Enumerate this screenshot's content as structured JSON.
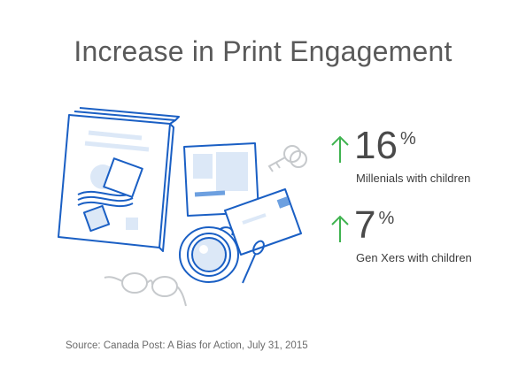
{
  "title": "Increase in Print Engagement",
  "stats": [
    {
      "value": "16",
      "unit": "%",
      "label": "Millenials with children"
    },
    {
      "value": "7",
      "unit": "%",
      "label": "Gen Xers with children"
    }
  ],
  "source": "Source: Canada Post: A Bias for Action, July 31, 2015",
  "colors": {
    "accent_blue": "#1a5fc4",
    "light_blue": "#dce8f7",
    "gray_line": "#c6c9cc",
    "arrow_green": "#3fb34f",
    "title_gray": "#5a5a5a"
  },
  "icons": [
    "magazine-icon",
    "card-icon",
    "envelope-icon",
    "keys-icon",
    "coffee-cup-icon",
    "spoon-icon",
    "glasses-icon",
    "up-arrow-icon"
  ]
}
